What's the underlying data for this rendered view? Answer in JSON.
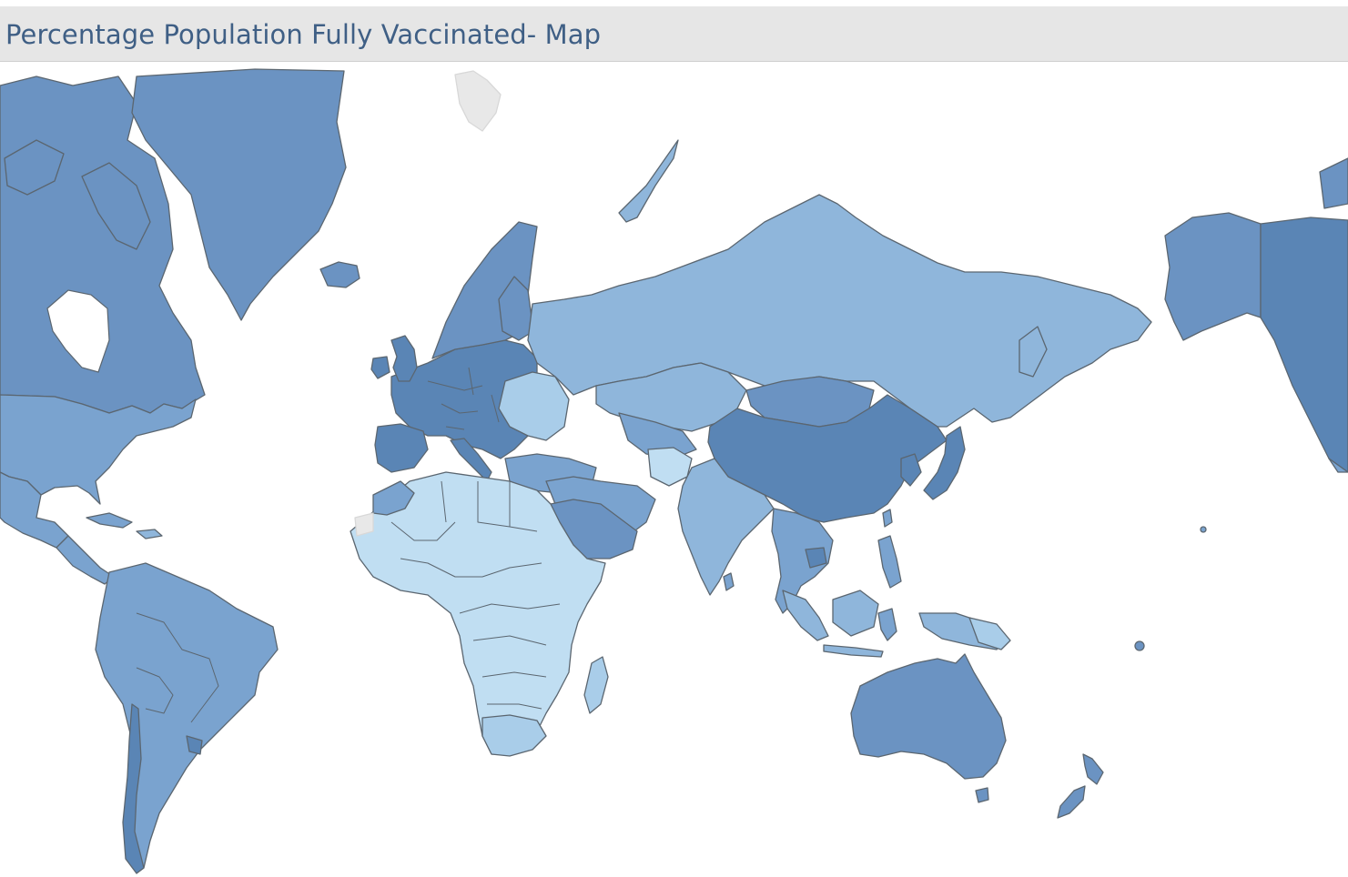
{
  "title": "Percentage Population Fully Vaccinated- Map",
  "colors": {
    "title_text": "#3f5f85",
    "title_bar": "#e6e6e6",
    "ocean": "#ffffff",
    "no_data": "#e8e8e8",
    "high": "#5a85b5",
    "mid_high": "#6b93c2",
    "mid": "#7aa3cf",
    "mid_low": "#8fb6db",
    "low": "#a9cde9",
    "lowest": "#c0def2"
  },
  "regions": [
    {
      "name": "Canada",
      "shade": "mid_high"
    },
    {
      "name": "Greenland",
      "shade": "mid_high"
    },
    {
      "name": "United States",
      "shade": "mid"
    },
    {
      "name": "Alaska",
      "shade": "mid_high"
    },
    {
      "name": "Mexico",
      "shade": "mid"
    },
    {
      "name": "Central America",
      "shade": "mid"
    },
    {
      "name": "South America",
      "shade": "mid"
    },
    {
      "name": "Chile",
      "shade": "high"
    },
    {
      "name": "Europe",
      "shade": "high"
    },
    {
      "name": "Scandinavia",
      "shade": "mid_high"
    },
    {
      "name": "Iberia",
      "shade": "high"
    },
    {
      "name": "Iceland",
      "shade": "mid_high"
    },
    {
      "name": "Eastern Europe",
      "shade": "low"
    },
    {
      "name": "Russia",
      "shade": "mid_low"
    },
    {
      "name": "Kazakhstan",
      "shade": "mid_low"
    },
    {
      "name": "Middle East",
      "shade": "mid"
    },
    {
      "name": "Saudi Arabia",
      "shade": "mid_high"
    },
    {
      "name": "Africa",
      "shade": "lowest"
    },
    {
      "name": "Morocco",
      "shade": "mid"
    },
    {
      "name": "Southern Africa",
      "shade": "low"
    },
    {
      "name": "Madagascar",
      "shade": "low"
    },
    {
      "name": "India",
      "shade": "mid_low"
    },
    {
      "name": "China",
      "shade": "high"
    },
    {
      "name": "Mongolia",
      "shade": "mid_high"
    },
    {
      "name": "Japan",
      "shade": "high"
    },
    {
      "name": "Southeast Asia",
      "shade": "mid"
    },
    {
      "name": "Indonesia",
      "shade": "mid_low"
    },
    {
      "name": "Australia",
      "shade": "mid_high"
    },
    {
      "name": "New Zealand",
      "shade": "mid_high"
    }
  ]
}
